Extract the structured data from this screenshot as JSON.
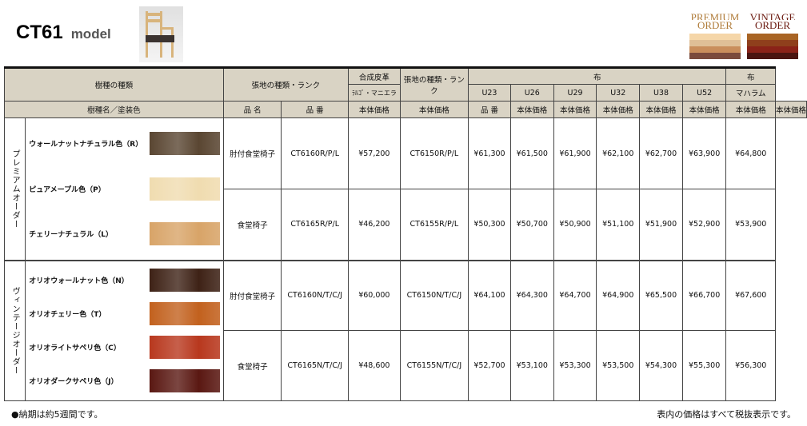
{
  "header": {
    "model": "CT61",
    "model_suffix": "model"
  },
  "badges": [
    {
      "line1": "PREMIUM",
      "line2": "ORDER",
      "color": "#b07c3a",
      "bars": [
        "#f5d6a8",
        "#dfbf97",
        "#c98e5c",
        "#7a4a3c"
      ]
    },
    {
      "line1": "VINTAGE",
      "line2": "ORDER",
      "color": "#6b1a10",
      "bars": [
        "#a86424",
        "#8f3f1c",
        "#8a2218",
        "#4a1410"
      ]
    }
  ],
  "table": {
    "h_wood_type": "樹種の種類",
    "h_fabric_rank": "張地の種類・ランク",
    "h_leather": "合成皮革",
    "h_leather_sub": "ﾗﾙｺﾞ・マニエラ",
    "h_fabric_rank2": "張地の種類・ランク",
    "h_cloth": "布",
    "h_cloth2": "布",
    "cloth_codes": [
      "U23",
      "U26",
      "U29",
      "U32",
      "U38",
      "U52"
    ],
    "h_maharam": "マハラム",
    "h_wood_name": "樹種名／塗装色",
    "h_item_name": "品 名",
    "h_item_no": "品 番",
    "h_price": "本体価格",
    "groups": [
      {
        "label": "プレミアムオーダー",
        "woods": [
          {
            "name": "ウォールナットナチュラル色（R）",
            "color": "#5a4632"
          },
          {
            "name": "ピュアメープル色（P）",
            "color": "#f0dcb0"
          },
          {
            "name": "チェリーナチュラル（L）",
            "color": "#d8a468"
          }
        ],
        "rows": [
          {
            "item": "肘付食堂椅子",
            "no1": "CT6160R/P/L",
            "leather": "¥57,200",
            "no2": "CT6150R/P/L",
            "cloth": [
              "¥61,300",
              "¥61,500",
              "¥61,900",
              "¥62,100",
              "¥62,700",
              "¥63,900"
            ],
            "maharam": "¥64,800"
          },
          {
            "item": "食堂椅子",
            "no1": "CT6165R/P/L",
            "leather": "¥46,200",
            "no2": "CT6155R/P/L",
            "cloth": [
              "¥50,300",
              "¥50,700",
              "¥50,900",
              "¥51,100",
              "¥51,900",
              "¥52,900"
            ],
            "maharam": "¥53,900"
          }
        ]
      },
      {
        "label": "ヴィンテージオーダー",
        "woods": [
          {
            "name": "オリオウォールナット色（N）",
            "color": "#3e2216"
          },
          {
            "name": "オリオチェリー色（T）",
            "color": "#c2611e"
          },
          {
            "name": "オリオライトサペリ色（C）",
            "color": "#b8381e"
          },
          {
            "name": "オリオダークサペリ色（J）",
            "color": "#5a1812"
          }
        ],
        "rows": [
          {
            "item": "肘付食堂椅子",
            "no1": "CT6160N/T/C/J",
            "leather": "¥60,000",
            "no2": "CT6150N/T/C/J",
            "cloth": [
              "¥64,100",
              "¥64,300",
              "¥64,700",
              "¥64,900",
              "¥65,500",
              "¥66,700"
            ],
            "maharam": "¥67,600"
          },
          {
            "item": "食堂椅子",
            "no1": "CT6165N/T/C/J",
            "leather": "¥48,600",
            "no2": "CT6155N/T/C/J",
            "cloth": [
              "¥52,700",
              "¥53,100",
              "¥53,300",
              "¥53,500",
              "¥54,300",
              "¥55,300"
            ],
            "maharam": "¥56,300"
          }
        ]
      }
    ]
  },
  "footer": {
    "left": "●納期は約5週間です。",
    "right": "表内の価格はすべて税抜表示です。"
  }
}
